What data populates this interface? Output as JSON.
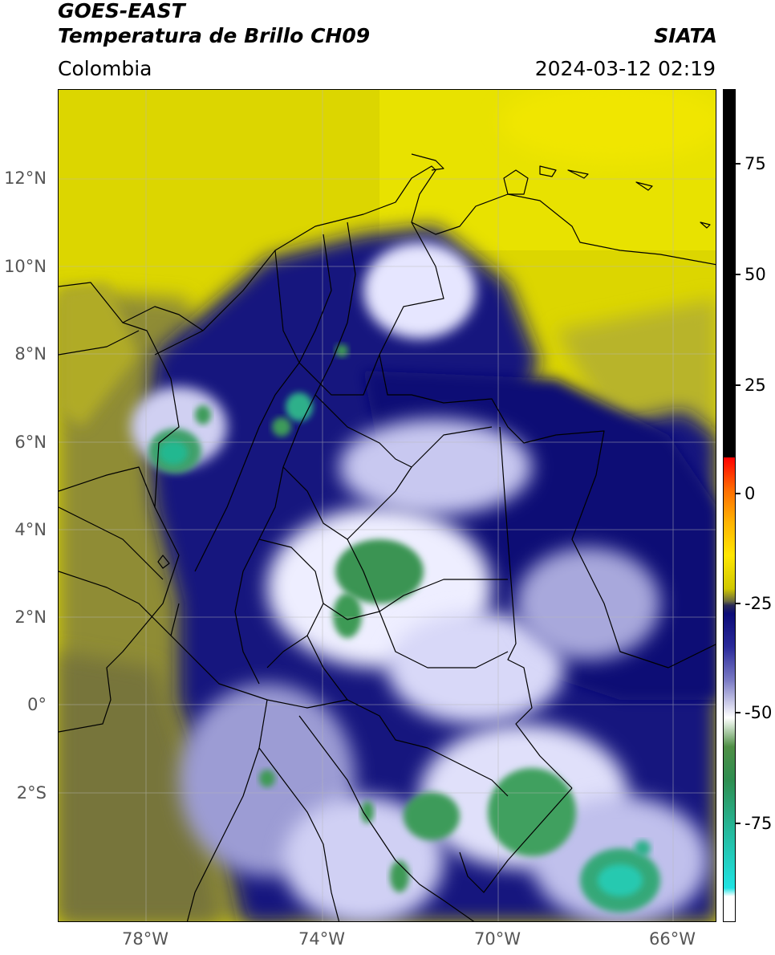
{
  "header": {
    "satellite": "GOES-EAST",
    "product": "Temperatura de Brillo CH09",
    "organization": "SIATA",
    "region": "Colombia",
    "datetime": "2024-03-12 02:19"
  },
  "map": {
    "lat_labels": [
      "12°N",
      "10°N",
      "8°N",
      "6°N",
      "4°N",
      "2°N",
      "0°",
      "2°S"
    ],
    "lon_labels": [
      "78°W",
      "74°W",
      "70°W",
      "66°W"
    ]
  },
  "colorbar": {
    "ticks": [
      "75",
      "50",
      "25",
      "0",
      "-25",
      "-50",
      "-75"
    ]
  },
  "colors": {
    "warm_yellow": "#e6df00",
    "olive": "#8c8a30",
    "deep_blue": "#0c0c78",
    "cold_white": "#f2f2ff",
    "cold_green": "#3e9a55",
    "coldest_cyan": "#25c6b0",
    "hot_black": "#000000"
  }
}
